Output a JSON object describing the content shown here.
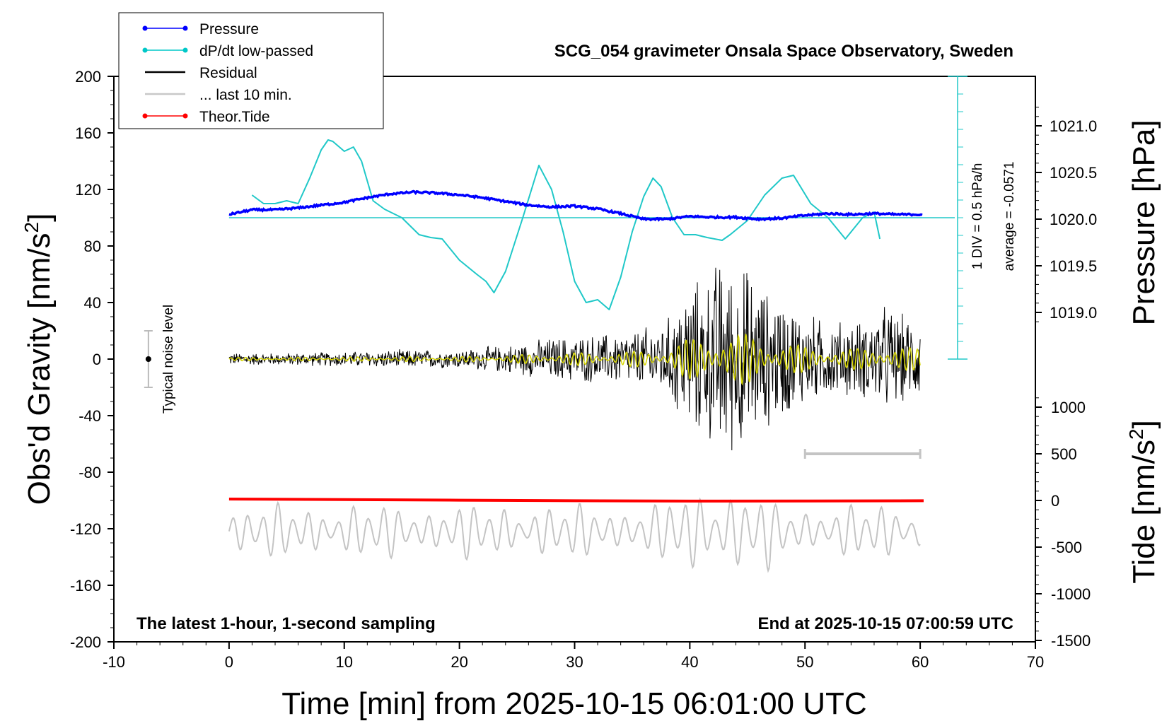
{
  "chart_data": {
    "type": "line",
    "title": "SCG_054 gravimeter Onsala Space Observatory, Sweden",
    "xlabel": "Time [min] from 2025-10-15 06:01:00 UTC",
    "ylabel_left": "Obs'd Gravity [nm/s",
    "ylabel_left_sup": "2",
    "ylabel_left_end": "]",
    "ylabel_right_pressure": "Pressure [hPa]",
    "ylabel_right_tide": "Tide [nm/s",
    "ylabel_right_tide_sup": "2",
    "ylabel_right_tide_end": "]",
    "xlim": [
      -10,
      70
    ],
    "ylim": [
      -200,
      200
    ],
    "pressure_lim": [
      1018.5,
      1021.5
    ],
    "tide_lim": [
      -1500,
      1500
    ],
    "x_ticks": [
      "-10",
      "0",
      "10",
      "20",
      "30",
      "40",
      "50",
      "60",
      "70"
    ],
    "y_ticks": [
      "200",
      "160",
      "120",
      "80",
      "40",
      "0",
      "-40",
      "-80",
      "-120",
      "-160",
      "-200"
    ],
    "pressure_ticks": [
      "1021.0",
      "1020.5",
      "1020.0",
      "1019.5",
      "1019.0"
    ],
    "tide_ticks": [
      "1000",
      "500",
      "0",
      "-500",
      "-1000",
      "-1500"
    ],
    "annotation_left": "The latest 1-hour, 1-second sampling",
    "annotation_right": "End at 2025-10-15 07:00:59 UTC",
    "noise_label": "Typical noise level",
    "div_label": "1 DIV = 0.5 hPa/h",
    "avg_label": "average = -0.0571",
    "legend": [
      {
        "name": "Pressure",
        "color": "#0000ff",
        "marker": true
      },
      {
        "name": "dP/dt low-passed",
        "color": "#00c8c8",
        "marker": true
      },
      {
        "name": "Residual",
        "color": "#000000",
        "marker": false
      },
      {
        "name": "... last 10 min.",
        "color": "#c8c8c8",
        "marker": false
      },
      {
        "name": "Theor.Tide",
        "color": "#ff0000",
        "marker": true
      }
    ],
    "series": [
      {
        "name": "Pressure",
        "axis": "pressure",
        "color": "#0000ff",
        "x": [
          0,
          2,
          4,
          6,
          8,
          10,
          12,
          14,
          16,
          18,
          20,
          22,
          24,
          26,
          28,
          30,
          32,
          34,
          36,
          38,
          40,
          42,
          44,
          46,
          48,
          50,
          52,
          54,
          56,
          58,
          60.3
        ],
        "y": [
          1020.05,
          1020.1,
          1020.1,
          1020.12,
          1020.15,
          1020.18,
          1020.23,
          1020.27,
          1020.29,
          1020.28,
          1020.26,
          1020.23,
          1020.19,
          1020.15,
          1020.13,
          1020.14,
          1020.11,
          1020.06,
          1020.0,
          1020.0,
          1020.03,
          1020.02,
          1020.02,
          1020.0,
          1020.01,
          1020.04,
          1020.06,
          1020.05,
          1020.06,
          1020.05,
          1020.05
        ]
      },
      {
        "name": "dP/dt low-passed",
        "axis": "gravity",
        "color": "#20c8c8",
        "x": [
          2,
          3,
          4,
          5,
          6,
          7,
          8,
          8.6,
          9,
          10,
          10.8,
          11.5,
          12.5,
          13.5,
          15,
          16.5,
          17.5,
          18.5,
          20,
          21.5,
          22.3,
          23,
          24,
          25.5,
          26.9,
          28,
          29,
          30,
          31,
          32,
          33,
          34,
          35,
          36,
          36.8,
          37.5,
          38.5,
          39.5,
          40.5,
          41.5,
          42.8,
          43.5,
          45,
          46.5,
          48,
          49,
          50.5,
          52,
          53.5,
          55,
          56,
          56.5
        ],
        "y": [
          116,
          110,
          110,
          112,
          110,
          128,
          148,
          155,
          154,
          147,
          150,
          140,
          112,
          106,
          100,
          88,
          86,
          85,
          70,
          60,
          55,
          47,
          62,
          100,
          137,
          120,
          90,
          55,
          40,
          42,
          35,
          58,
          90,
          115,
          128,
          122,
          100,
          88,
          88,
          86,
          84,
          88,
          98,
          116,
          128,
          130,
          110,
          100,
          85,
          100,
          104,
          85
        ]
      },
      {
        "name": "Theor.Tide",
        "axis": "tide",
        "color": "#ff0000",
        "x": [
          0,
          10,
          20,
          30,
          40,
          50,
          60.3
        ],
        "y": [
          15,
          10,
          3,
          -3,
          -7,
          -5,
          -3
        ]
      }
    ],
    "residual_envelope": {
      "x": [
        0,
        5,
        10,
        15,
        20,
        25,
        28,
        32,
        35,
        38,
        39.5,
        40.5,
        42,
        42.5,
        43.5,
        45,
        46.5,
        48,
        50,
        52,
        55,
        57,
        58,
        60
      ],
      "amp": [
        4,
        4,
        5,
        6,
        6,
        10,
        14,
        16,
        18,
        25,
        45,
        50,
        55,
        70,
        60,
        60,
        45,
        40,
        30,
        25,
        25,
        35,
        30,
        25
      ]
    },
    "last10_amp_tide": 280,
    "noise_bar": {
      "x": -7,
      "y": 0,
      "half": 20
    },
    "last10_bar": {
      "x0": 50,
      "x1": 60,
      "tide": 500
    }
  }
}
